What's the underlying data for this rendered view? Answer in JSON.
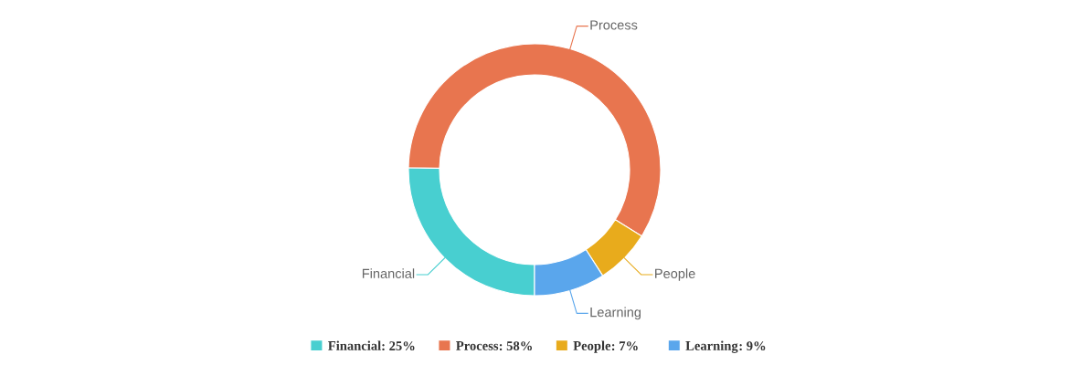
{
  "chart_data": {
    "type": "donut",
    "categories": [
      "Financial",
      "Process",
      "People",
      "Learning"
    ],
    "values": [
      25,
      58,
      7,
      9
    ],
    "value_labels": [
      ": 25%",
      ": 58%",
      ": 7%",
      ": 9%"
    ],
    "colors": [
      "#48cfd0",
      "#e8754f",
      "#e8ab1c",
      "#5aa6ec"
    ],
    "legend": "bottom"
  }
}
